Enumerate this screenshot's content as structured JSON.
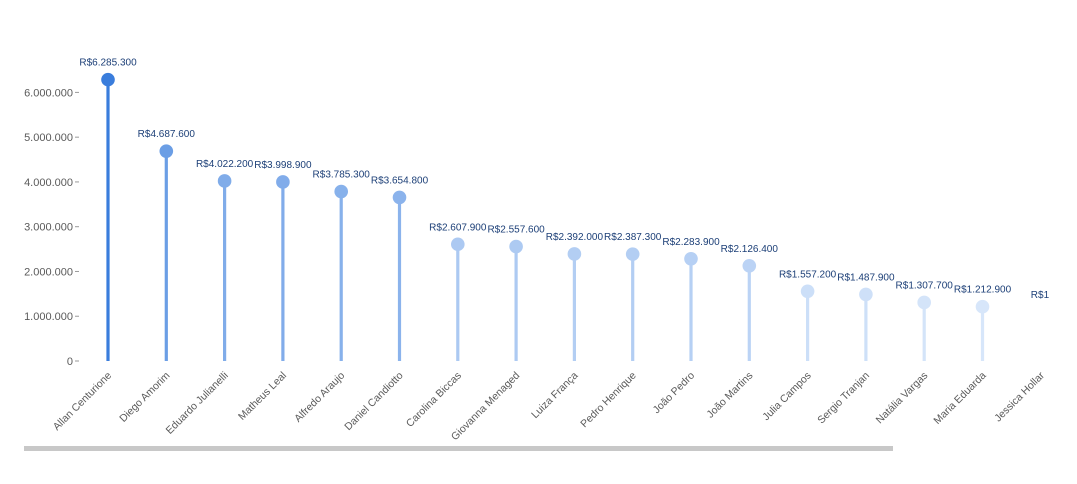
{
  "chart_data": {
    "type": "lollipop",
    "categories": [
      "Allan Centurione",
      "Diego Amorim",
      "Eduardo Julianelli",
      "Matheus Leal",
      "Alfredo Araujo",
      "Daniel Candiotto",
      "Carolina Biccas",
      "Giovanna Menaged",
      "Luiza França",
      "Pedro Henrique",
      "João Pedro",
      "João Martins",
      "Julia Campos",
      "Sergio Tranjan",
      "Natália Vargas",
      "Maria Eduarda",
      "Jessica Hollar"
    ],
    "values": [
      6285300,
      4687600,
      4022200,
      3998900,
      3785300,
      3654800,
      2607900,
      2557600,
      2392000,
      2387300,
      2283900,
      2126400,
      1557200,
      1487900,
      1307700,
      1212900,
      null
    ],
    "data_labels": [
      "R$6.285.300",
      "R$4.687.600",
      "R$4.022.200",
      "R$3.998.900",
      "R$3.785.300",
      "R$3.654.800",
      "R$2.607.900",
      "R$2.557.600",
      "R$2.392.000",
      "R$2.387.300",
      "R$2.283.900",
      "R$2.126.400",
      "R$1.557.200",
      "R$1.487.900",
      "R$1.307.700",
      "R$1.212.900",
      "R$1"
    ],
    "y_ticks": [
      "0",
      "1.000.000",
      "2.000.000",
      "3.000.000",
      "4.000.000",
      "5.000.000",
      "6.000.000"
    ],
    "ylim": [
      0,
      6285300
    ],
    "colors": {
      "high": "#3a7ddc",
      "low": "#d7e6fa",
      "label": "#1c3f77",
      "axis": "#5a5a5a"
    }
  }
}
